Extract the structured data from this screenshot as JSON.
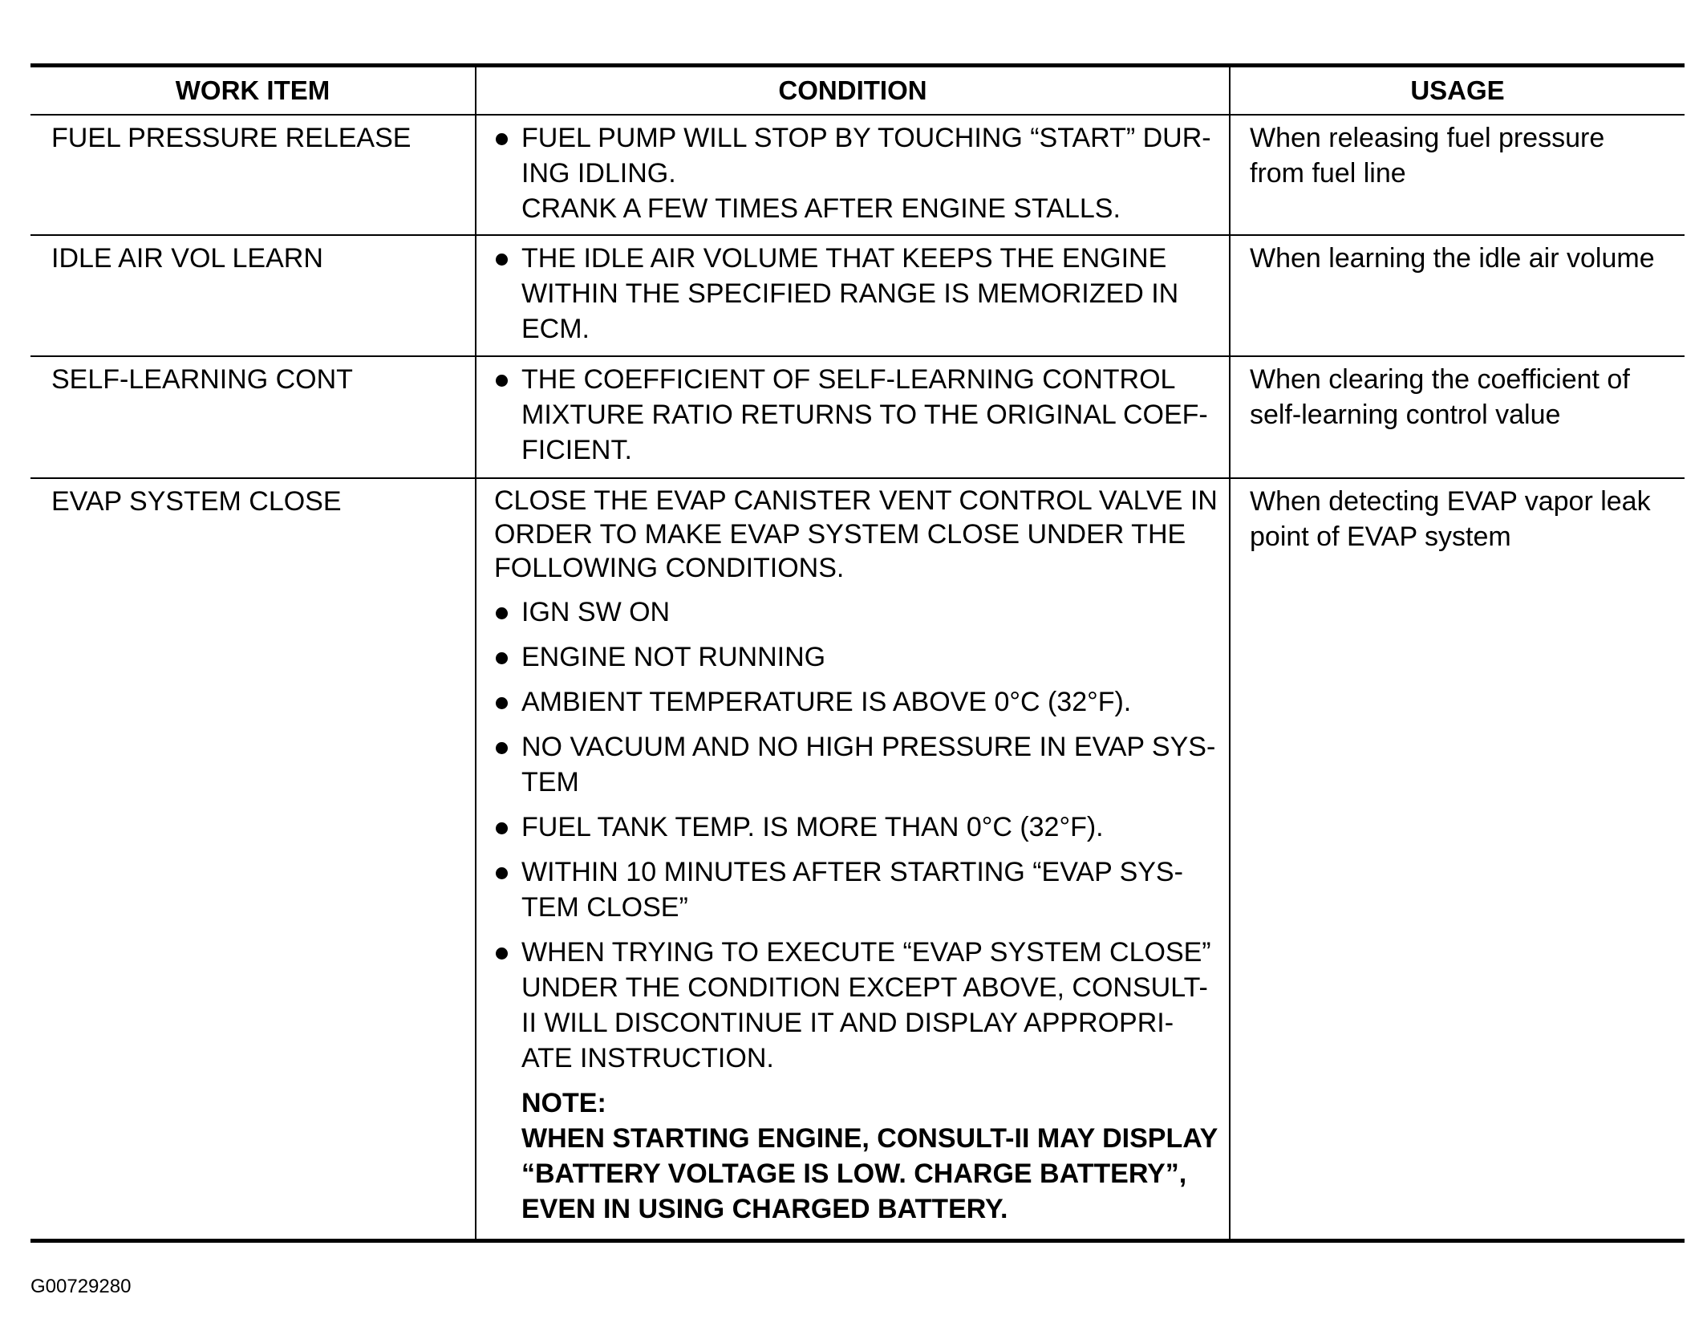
{
  "headers": [
    "WORK ITEM",
    "CONDITION",
    "USAGE"
  ],
  "rows": [
    {
      "work_item": "FUEL PRESSURE RELEASE",
      "condition": [
        {
          "type": "bullet",
          "lines": [
            "FUEL PUMP WILL STOP BY TOUCHING “START” DUR-",
            "ING IDLING.",
            "CRANK A FEW TIMES AFTER ENGINE STALLS."
          ]
        }
      ],
      "usage": [
        "When releasing fuel pressure",
        "from fuel line"
      ]
    },
    {
      "work_item": "IDLE AIR VOL LEARN",
      "condition": [
        {
          "type": "bullet",
          "lines": [
            "THE IDLE AIR VOLUME THAT KEEPS THE ENGINE",
            "WITHIN THE SPECIFIED RANGE IS MEMORIZED IN",
            "ECM."
          ]
        }
      ],
      "usage": [
        "When learning the idle air volume"
      ]
    },
    {
      "work_item": "SELF-LEARNING CONT",
      "condition": [
        {
          "type": "bullet",
          "lines": [
            "THE COEFFICIENT OF SELF-LEARNING CONTROL",
            "MIXTURE RATIO RETURNS TO THE ORIGINAL COEF-",
            "FICIENT."
          ]
        }
      ],
      "usage": [
        "When clearing the coefficient of",
        "self-learning control value"
      ]
    },
    {
      "work_item": "EVAP SYSTEM CLOSE",
      "condition": [
        {
          "type": "para",
          "lines": [
            "CLOSE THE EVAP CANISTER VENT CONTROL VALVE IN",
            "ORDER TO MAKE EVAP SYSTEM CLOSE UNDER THE",
            "FOLLOWING CONDITIONS."
          ]
        },
        {
          "type": "bullet",
          "lines": [
            "IGN SW ON"
          ]
        },
        {
          "type": "bullet",
          "lines": [
            "ENGINE NOT RUNNING"
          ]
        },
        {
          "type": "bullet",
          "lines": [
            "AMBIENT TEMPERATURE IS ABOVE 0°C (32°F)."
          ]
        },
        {
          "type": "bullet",
          "lines": [
            "NO VACUUM AND NO HIGH PRESSURE IN EVAP SYS-",
            "TEM"
          ]
        },
        {
          "type": "bullet",
          "lines": [
            " FUEL TANK TEMP. IS MORE THAN 0°C (32°F)."
          ]
        },
        {
          "type": "bullet",
          "lines": [
            "WITHIN 10 MINUTES AFTER STARTING “EVAP SYS-",
            "TEM CLOSE”"
          ]
        },
        {
          "type": "bullet",
          "lines": [
            "WHEN TRYING TO EXECUTE “EVAP SYSTEM CLOSE”",
            "UNDER THE CONDITION EXCEPT ABOVE, CONSULT-",
            "II WILL DISCONTINUE IT AND DISPLAY APPROPRI-",
            "ATE INSTRUCTION."
          ]
        },
        {
          "type": "note",
          "lines": [
            "NOTE:",
            "WHEN STARTING ENGINE, CONSULT-II MAY DISPLAY",
            "“BATTERY VOLTAGE IS LOW. CHARGE BATTERY”,",
            "EVEN IN USING CHARGED BATTERY."
          ]
        }
      ],
      "usage": [
        "When detecting EVAP vapor leak",
        "point of EVAP system"
      ]
    }
  ],
  "figure_id": "G00729280"
}
